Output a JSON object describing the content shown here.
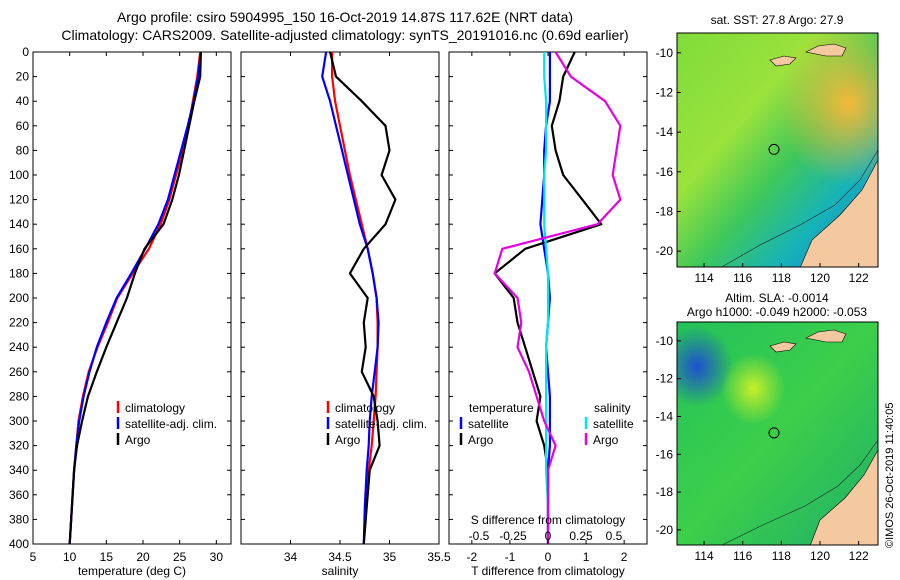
{
  "title": {
    "line1": "Argo profile: csiro 5904995_150 16-Oct-2019 14.87S 117.62E (NRT data)",
    "line2": "Climatology: CARS2009. Satellite-adjusted climatology: synTS_20191016.nc (0.69d earlier)"
  },
  "colors": {
    "climatology": "#ff0000",
    "satellite": "#0000ff",
    "argo": "#000000",
    "sat_s": "#00e5ee",
    "argo_s": "#e500e5",
    "land": "#f5c9a0"
  },
  "depth_axis": {
    "min": 0,
    "max": 400,
    "ticks": [
      0,
      20,
      40,
      60,
      80,
      100,
      120,
      140,
      160,
      180,
      200,
      220,
      240,
      260,
      280,
      300,
      320,
      340,
      360,
      380,
      400
    ]
  },
  "chart_data": [
    {
      "type": "line",
      "id": "temperature",
      "xlabel": "temperature (deg C)",
      "xlim": [
        5,
        32
      ],
      "xticks": [
        5,
        10,
        15,
        20,
        25,
        30
      ],
      "ylim": [
        0,
        400
      ],
      "legend": [
        "climatology",
        "satellite-adj. clim.",
        "Argo"
      ],
      "series": [
        {
          "name": "climatology",
          "color": "#ff0000",
          "x": [
            27.8,
            27.4,
            26.8,
            26.2,
            25.4,
            24.5,
            23.6,
            22.4,
            20.8,
            18.6,
            16.5,
            15.2,
            13.8,
            12.6,
            11.8,
            11.2,
            10.9,
            10.6,
            10.3,
            10.0
          ],
          "depth": [
            0,
            20,
            40,
            60,
            80,
            100,
            120,
            140,
            160,
            180,
            200,
            220,
            240,
            260,
            280,
            300,
            320,
            340,
            370,
            400
          ]
        },
        {
          "name": "satellite-adj. clim.",
          "color": "#0000ff",
          "x": [
            27.9,
            27.5,
            26.9,
            26.1,
            25.2,
            24.3,
            23.4,
            22.1,
            20.3,
            18.4,
            16.4,
            15.0,
            13.7,
            12.7,
            11.9,
            11.3,
            10.9,
            10.6,
            10.3,
            10.0
          ],
          "depth": [
            0,
            20,
            40,
            60,
            80,
            100,
            120,
            140,
            160,
            180,
            200,
            220,
            240,
            260,
            280,
            300,
            320,
            340,
            370,
            400
          ]
        },
        {
          "name": "Argo",
          "color": "#000000",
          "x": [
            27.9,
            27.8,
            27.0,
            26.3,
            25.6,
            24.9,
            24.0,
            22.8,
            20.2,
            18.9,
            17.8,
            16.4,
            15.0,
            13.7,
            12.5,
            11.7,
            11.0,
            10.6,
            10.3,
            10.0
          ],
          "depth": [
            0,
            20,
            40,
            60,
            80,
            100,
            120,
            140,
            160,
            180,
            200,
            220,
            240,
            260,
            280,
            300,
            320,
            340,
            370,
            400
          ]
        }
      ]
    },
    {
      "type": "line",
      "id": "salinity",
      "xlabel": "salinity",
      "xlim": [
        33.5,
        35.5
      ],
      "xticks": [
        34,
        34.5,
        35,
        35.5
      ],
      "ylim": [
        0,
        400
      ],
      "legend": [
        "climatology",
        "satellite-adj. clim.",
        "Argo"
      ],
      "series": [
        {
          "name": "climatology",
          "color": "#ff0000",
          "x": [
            34.42,
            34.42,
            34.45,
            34.5,
            34.55,
            34.6,
            34.66,
            34.72,
            34.78,
            34.83,
            34.87,
            34.88,
            34.88,
            34.87,
            34.86,
            34.84,
            34.82,
            34.79,
            34.76,
            34.74
          ],
          "depth": [
            0,
            20,
            40,
            60,
            80,
            100,
            120,
            140,
            160,
            180,
            200,
            220,
            240,
            260,
            280,
            300,
            320,
            340,
            370,
            400
          ]
        },
        {
          "name": "satellite-adj. clim.",
          "color": "#0000ff",
          "x": [
            34.36,
            34.32,
            34.4,
            34.46,
            34.52,
            34.58,
            34.64,
            34.7,
            34.78,
            34.83,
            34.87,
            34.89,
            34.88,
            34.85,
            34.82,
            34.8,
            34.79,
            34.77,
            34.75,
            34.74
          ],
          "depth": [
            0,
            20,
            40,
            60,
            80,
            100,
            120,
            140,
            160,
            180,
            200,
            220,
            240,
            260,
            280,
            300,
            320,
            340,
            370,
            400
          ]
        },
        {
          "name": "Argo",
          "color": "#000000",
          "x": [
            34.4,
            34.46,
            34.72,
            34.96,
            35.0,
            34.92,
            35.06,
            34.96,
            34.74,
            34.6,
            34.78,
            34.74,
            34.76,
            34.72,
            34.84,
            34.88,
            34.9,
            34.8,
            34.77,
            34.74
          ],
          "depth": [
            0,
            20,
            40,
            60,
            80,
            100,
            120,
            140,
            160,
            180,
            200,
            220,
            240,
            260,
            280,
            300,
            320,
            340,
            370,
            400
          ]
        }
      ]
    },
    {
      "type": "line",
      "id": "difference",
      "xlabel": "T difference from climatology",
      "xlim": [
        -2.6,
        2.6
      ],
      "xticks": [
        -2,
        -1,
        0,
        1,
        2
      ],
      "top_xlabel": "S difference from climatology",
      "top_xticks": [
        "-0.5",
        "-0.25",
        "0",
        "0.25",
        "0.5"
      ],
      "ylim": [
        0,
        400
      ],
      "legend_left_title": "temperature",
      "legend_right_title": "salinity",
      "legend": [
        "satellite",
        "Argo"
      ],
      "series": [
        {
          "name": "temperature satellite",
          "color": "#0000ff",
          "x": [
            0.05,
            0.05,
            0.05,
            -0.05,
            -0.1,
            -0.1,
            -0.15,
            -0.2,
            -0.1,
            0.0,
            0.05,
            0.0,
            -0.05,
            0.0,
            0.05,
            0.05,
            0.05,
            0.0,
            0.0,
            0.0
          ],
          "depth": [
            0,
            20,
            40,
            60,
            80,
            100,
            120,
            140,
            160,
            180,
            200,
            220,
            240,
            260,
            280,
            300,
            320,
            340,
            370,
            400
          ]
        },
        {
          "name": "temperature Argo",
          "color": "#000000",
          "x": [
            0.7,
            0.4,
            0.3,
            0.1,
            0.2,
            0.4,
            0.9,
            1.4,
            -0.6,
            -1.4,
            -0.9,
            -0.8,
            -0.6,
            -0.4,
            -0.2,
            -0.3,
            -0.1,
            0.0,
            0.0,
            0.0
          ],
          "depth": [
            0,
            20,
            40,
            60,
            80,
            100,
            120,
            140,
            160,
            180,
            200,
            220,
            240,
            260,
            280,
            300,
            320,
            340,
            370,
            400
          ]
        },
        {
          "name": "salinity satellite",
          "color": "#00e5ee",
          "x": [
            -0.1,
            -0.1,
            -0.05,
            -0.05,
            -0.05,
            -0.1,
            -0.1,
            -0.1,
            -0.05,
            0.0,
            0.0,
            0.0,
            -0.05,
            -0.05,
            -0.05,
            -0.05,
            -0.05,
            -0.05,
            0.0,
            0.0
          ],
          "depth": [
            0,
            20,
            40,
            60,
            80,
            100,
            120,
            140,
            160,
            180,
            200,
            220,
            240,
            260,
            280,
            300,
            320,
            340,
            370,
            400
          ]
        },
        {
          "name": "salinity Argo",
          "color": "#e500e5",
          "x": [
            0.2,
            0.6,
            1.5,
            1.9,
            1.8,
            1.7,
            1.9,
            1.3,
            -1.2,
            -1.4,
            -0.8,
            -0.7,
            -0.8,
            -0.5,
            -0.3,
            -0.1,
            0.2,
            0.0,
            0.0,
            0.0
          ],
          "depth": [
            0,
            20,
            40,
            60,
            80,
            100,
            120,
            140,
            160,
            180,
            200,
            220,
            240,
            260,
            280,
            300,
            320,
            340,
            370,
            400
          ]
        }
      ]
    },
    {
      "type": "heatmap",
      "id": "sst-map",
      "title": "sat. SST: 27.8 Argo: 27.9",
      "xticks": [
        "114",
        "116",
        "118",
        "120",
        "122"
      ],
      "yticks": [
        "-10",
        "-12",
        "-14",
        "-16",
        "-18",
        "-20"
      ],
      "marker_lon": 117.62,
      "marker_lat": -14.87
    },
    {
      "type": "heatmap",
      "id": "sla-map",
      "title1": "Altim. SLA: -0.0014",
      "title2": "Argo h1000: -0.049 h2000: -0.053",
      "xticks": [
        "114",
        "116",
        "118",
        "120",
        "122"
      ],
      "yticks": [
        "-10",
        "-12",
        "-14",
        "-16",
        "-18",
        "-20"
      ],
      "marker_lon": 117.62,
      "marker_lat": -14.87
    }
  ],
  "credit": "©IMOS 26-Oct-2019 11:40:05"
}
